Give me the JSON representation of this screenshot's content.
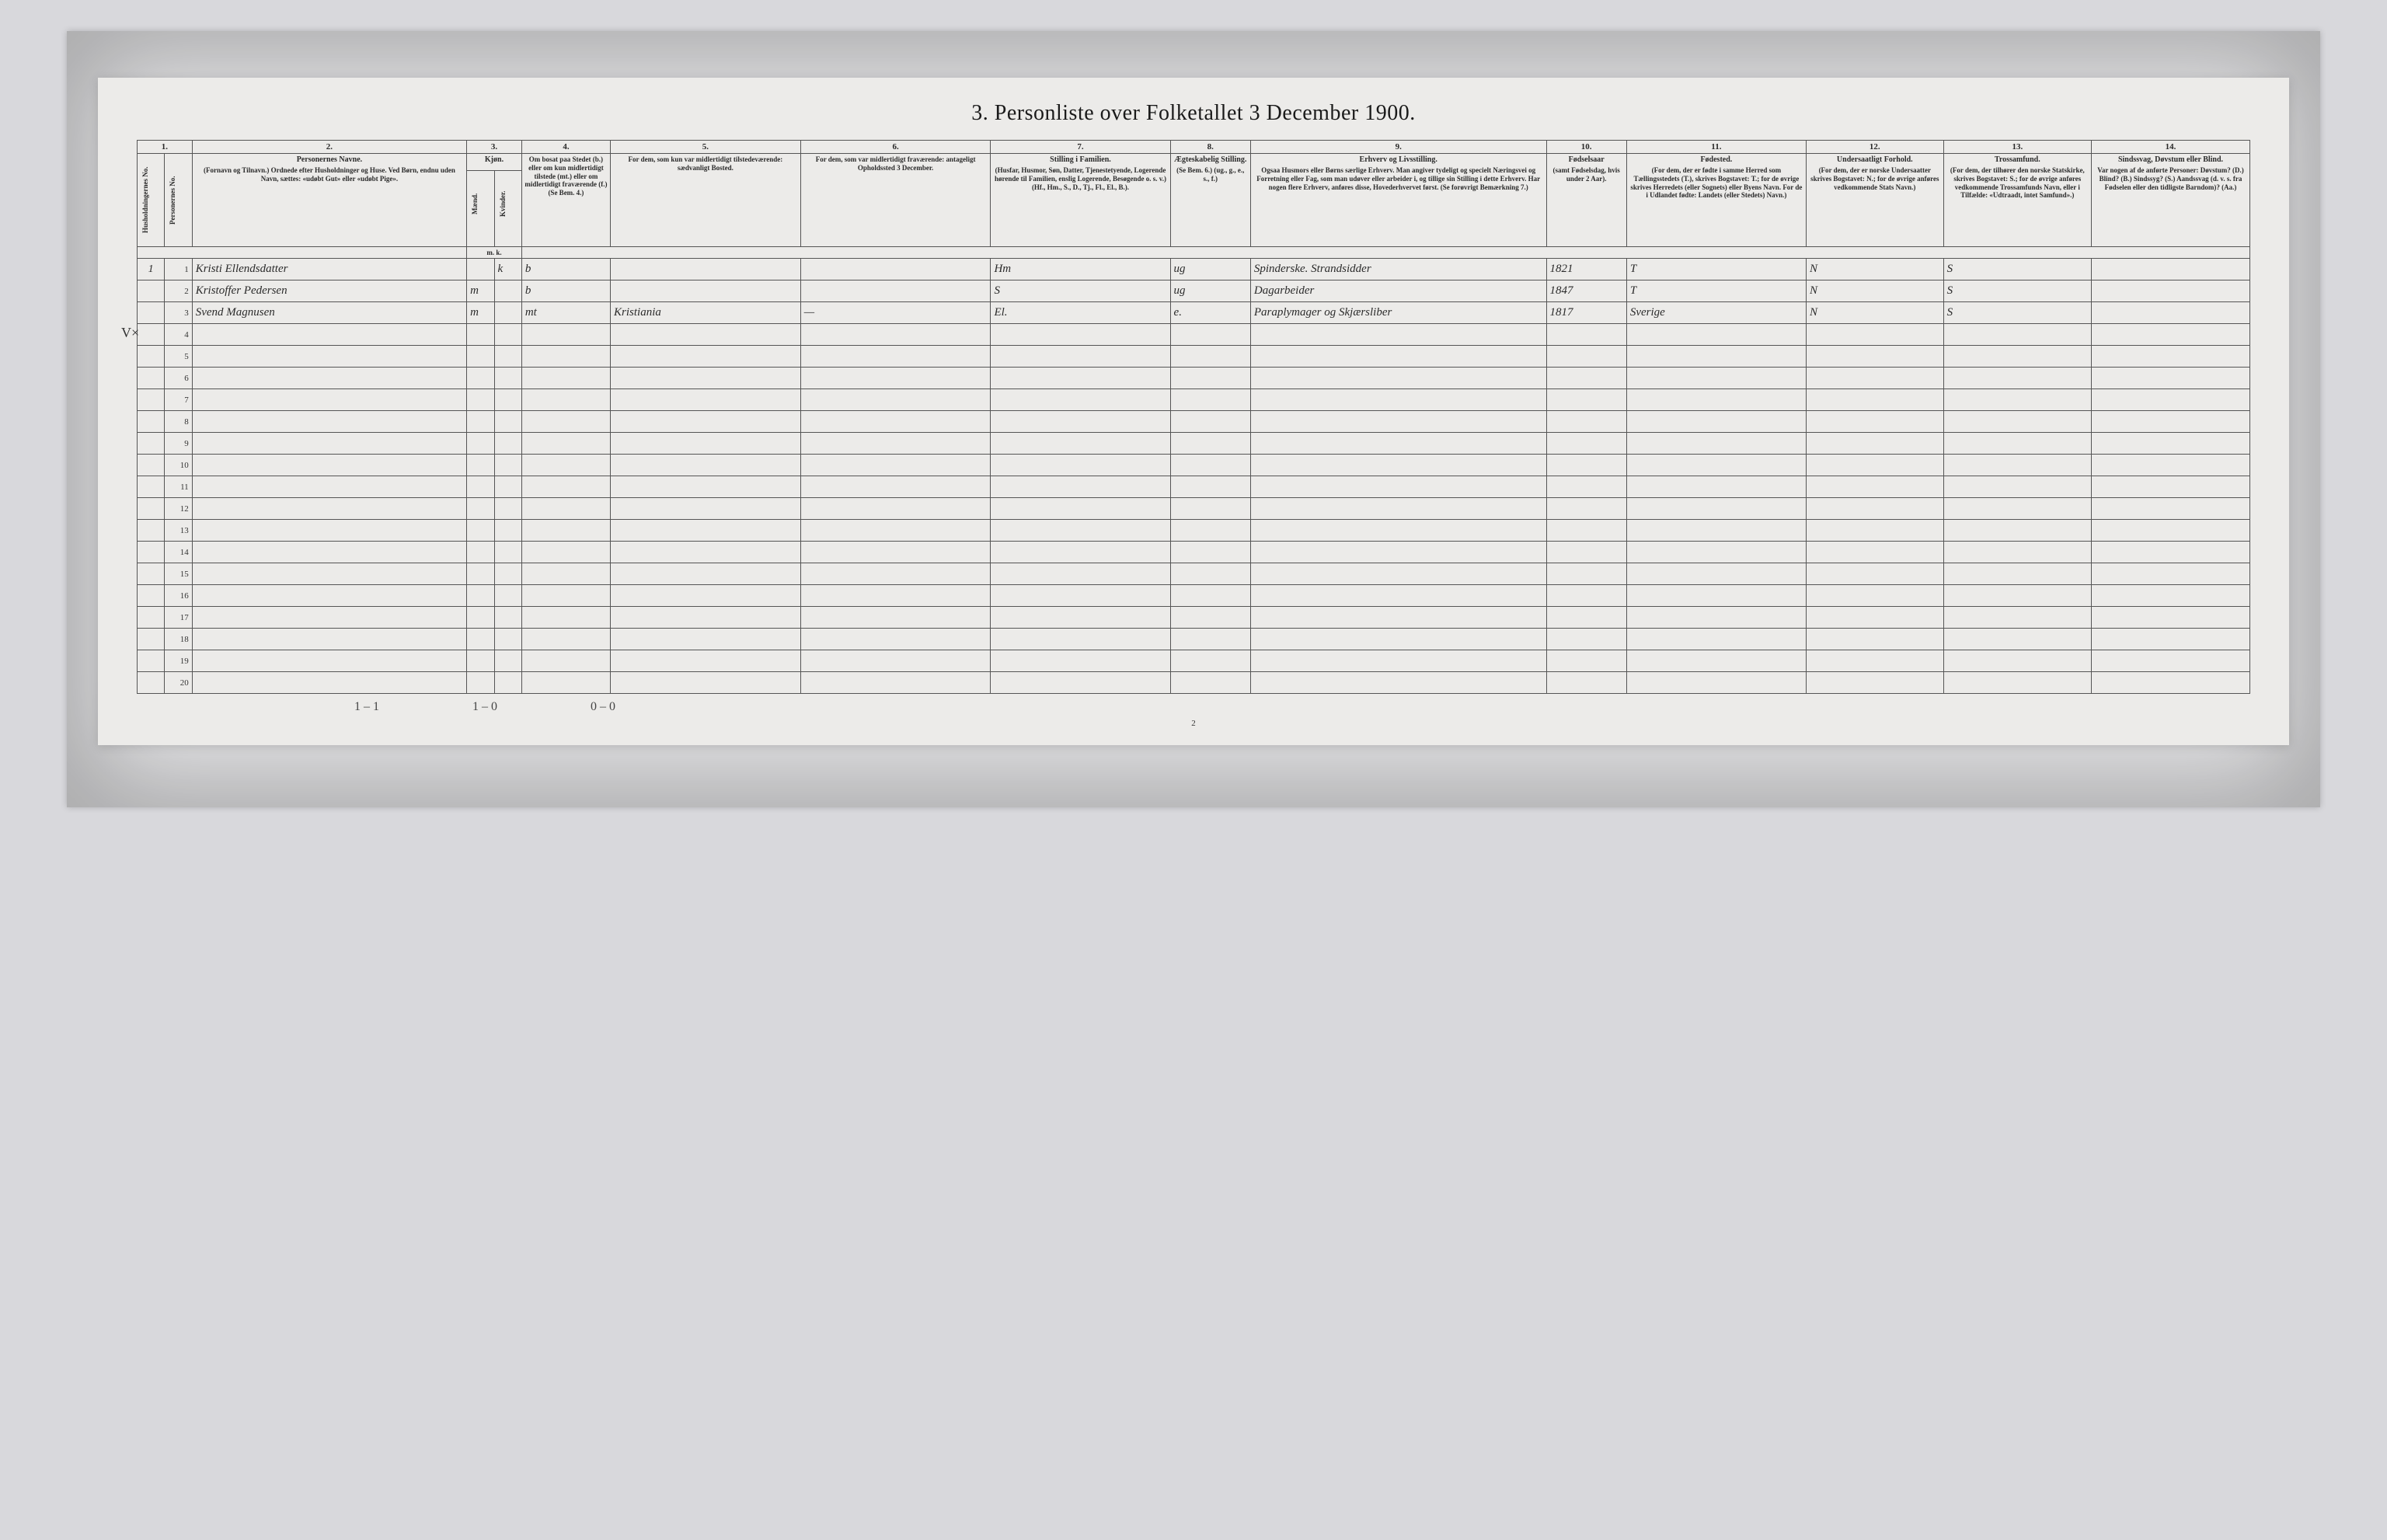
{
  "title": "3. Personliste over Folketallet 3 December 1900.",
  "page_number": "2",
  "margin_mark": "V×",
  "column_numbers": [
    "1.",
    "2.",
    "3.",
    "4.",
    "5.",
    "6.",
    "7.",
    "8.",
    "9.",
    "10.",
    "11.",
    "12.",
    "13.",
    "14."
  ],
  "headers": {
    "c1a": "Husholdningernes No.",
    "c1b": "Personernes No.",
    "c2_title": "Personernes Navne.",
    "c2_sub": "(Fornavn og Tilnavn.)\nOrdnede efter Husholdninger og Huse.\nVed Børn, endnu uden Navn, sættes: «udøbt Gut» eller «udøbt Pige».",
    "c3_title": "Kjøn.",
    "c3_sub1": "Mænd.",
    "c3_sub2": "Kvinder.",
    "c3_mk": "m.   k.",
    "c4": "Om bosat paa Stedet (b.) eller om kun midlertidigt tilstede (mt.) eller om midlertidigt fraværende (f.)\n(Se Bem. 4.)",
    "c5": "For dem, som kun var midlertidigt tilstedeværende:\nsædvanligt Bosted.",
    "c6": "For dem, som var midlertidigt fraværende:\nantageligt Opholdssted 3 December.",
    "c7_title": "Stilling i Familien.",
    "c7_sub": "(Husfar, Husmor, Søn, Datter, Tjenestetyende, Logerende hørende til Familien, enslig Logerende, Besøgende o. s. v.)\n(Hf., Hm., S., D., Tj., Fl., El., B.).",
    "c8_title": "Ægteskabelig Stilling.",
    "c8_sub": "(Se Bem. 6.)\n(ug., g., e., s., f.)",
    "c9_title": "Erhverv og Livsstilling.",
    "c9_sub": "Ogsaa Husmors eller Børns særlige Erhverv. Man angiver tydeligt og specielt Næringsvei og Forretning eller Fag, som man udøver eller arbeider i, og tillige sin Stilling i dette Erhverv. Har nogen flere Erhverv, anføres disse, Hovederhvervet først.\n(Se forøvrigt Bemærkning 7.)",
    "c10_title": "Fødselsaar",
    "c10_sub": "(samt Fødselsdag, hvis under 2 Aar).",
    "c11_title": "Fødested.",
    "c11_sub": "(For dem, der er fødte i samme Herred som Tællingsstedets (T.), skrives Bogstavet: T.; for de øvrige skrives Herredets (eller Sognets) eller Byens Navn. For de i Udlandet fødte: Landets (eller Stedets) Navn.)",
    "c12_title": "Undersaatligt Forhold.",
    "c12_sub": "(For dem, der er norske Undersaatter skrives Bogstavet: N.; for de øvrige anføres vedkommende Stats Navn.)",
    "c13_title": "Trossamfund.",
    "c13_sub": "(For dem, der tilhører den norske Statskirke, skrives Bogstavet: S.; for de øvrige anføres vedkommende Trossamfunds Navn, eller i Tilfælde: «Udtraadt, intet Samfund».)",
    "c14_title": "Sindssvag, Døvstum eller Blind.",
    "c14_sub": "Var nogen af de anførte Personer:\nDøvstum? (D.)\nBlind? (B.)\nSindssyg? (S.)\nAandssvag (d. v. s. fra Fødselen eller den tidligste Barndom)? (Aa.)"
  },
  "rows": [
    {
      "hh": "1",
      "no": "1",
      "name": "Kristi Ellendsdatter",
      "sex": "k",
      "res": "b",
      "c5": "",
      "c6": "",
      "fam": "Hm",
      "marital": "ug",
      "occ": "Spinderske. Strandsidder",
      "year": "1821",
      "birthplace": "T",
      "nat": "N",
      "rel": "S",
      "c14": ""
    },
    {
      "hh": "",
      "no": "2",
      "name": "Kristoffer Pedersen",
      "sex": "m",
      "res": "b",
      "c5": "",
      "c6": "",
      "fam": "S",
      "marital": "ug",
      "occ": "Dagarbeider",
      "year": "1847",
      "birthplace": "T",
      "nat": "N",
      "rel": "S",
      "c14": ""
    },
    {
      "hh": "",
      "no": "3",
      "name": "Svend Magnusen",
      "sex": "m",
      "res": "mt",
      "c5": "Kristiania",
      "c6": "—",
      "fam": "El.",
      "marital": "e.",
      "occ": "Paraplymager og Skjærsliber",
      "year": "1817",
      "birthplace": "Sverige",
      "nat": "N",
      "rel": "S",
      "c14": ""
    }
  ],
  "empty_rows": [
    "4",
    "5",
    "6",
    "7",
    "8",
    "9",
    "10",
    "11",
    "12",
    "13",
    "14",
    "15",
    "16",
    "17",
    "18",
    "19",
    "20"
  ],
  "footer": {
    "a": "1 – 1",
    "b": "1 – 0",
    "c": "0 – 0"
  },
  "col_widths": {
    "c1a": "1.3%",
    "c1b": "1.3%",
    "c2": "13%",
    "c3a": "1.3%",
    "c3b": "1.3%",
    "c4": "4.2%",
    "c5": "9%",
    "c6": "9%",
    "c7": "8.5%",
    "c8": "3.8%",
    "c9": "14%",
    "c10": "3.8%",
    "c11": "8.5%",
    "c12": "6.5%",
    "c13": "7%",
    "c14": "7.5%"
  },
  "colors": {
    "bg": "#d8d8dc",
    "paper": "#ecebe9",
    "ink": "#2a2a2a",
    "rule": "#555"
  }
}
